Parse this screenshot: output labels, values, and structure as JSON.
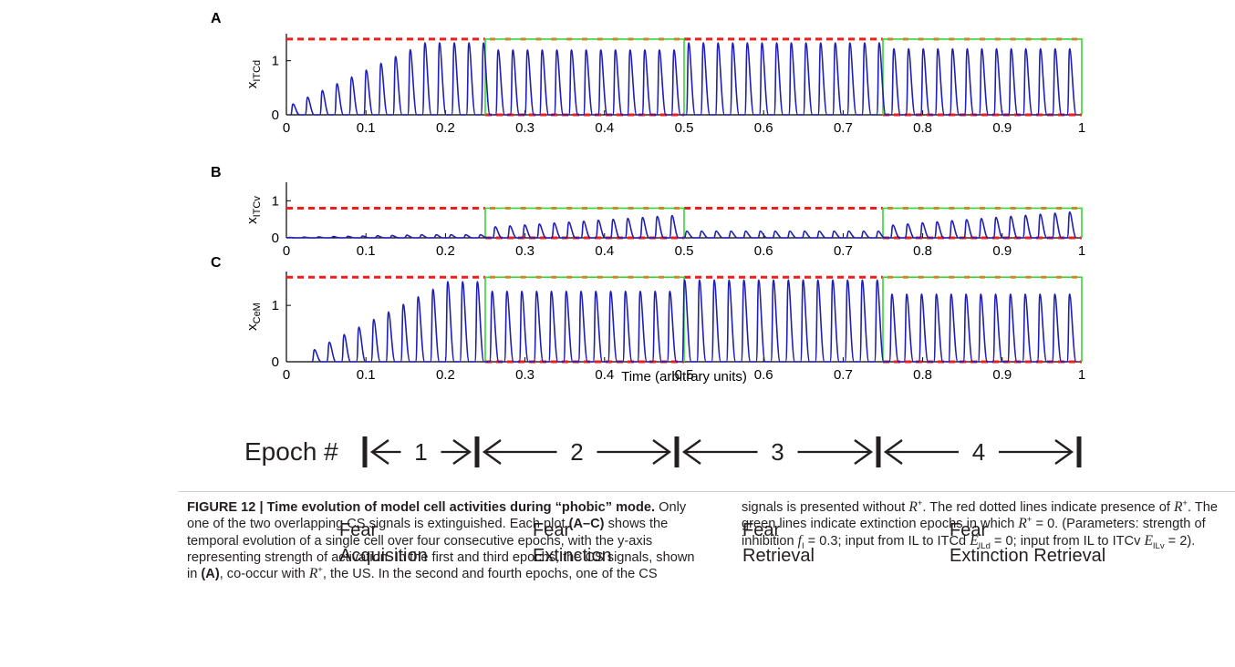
{
  "figure": {
    "panels": [
      {
        "label": "A",
        "ylabel_base": "x",
        "ylabel_sub": "ITCd",
        "yticks": [
          "1",
          "0"
        ]
      },
      {
        "label": "B",
        "ylabel_base": "x",
        "ylabel_sub": "ITCv",
        "yticks": [
          "1",
          "0"
        ]
      },
      {
        "label": "C",
        "ylabel_base": "x",
        "ylabel_sub": "CeM",
        "yticks": [
          "1",
          "0"
        ]
      }
    ],
    "xticks": [
      "0",
      "0.1",
      "0.2",
      "0.3",
      "0.4",
      "0.5",
      "0.6",
      "0.7",
      "0.8",
      "0.9",
      "1"
    ],
    "xlabel": "Time (arbitrary units)",
    "colors": {
      "activity": "#1f1fb4",
      "r_plus": "#e8201f",
      "extinction": "#39d639",
      "axis": "#000000"
    }
  },
  "chart_data": [
    {
      "type": "line",
      "panel": "A",
      "xlabel": "",
      "ylabel": "x ITCd",
      "xlim": [
        0,
        1
      ],
      "ylim": [
        0,
        1.5
      ],
      "series": [
        {
          "name": "",
          "kind": "spikes",
          "x_start": 0.005,
          "x_end": 1.0,
          "spikes": 54,
          "peaks_by_epoch": [
            1.33,
            1.2,
            1.33,
            1.22
          ]
        },
        {
          "name": "",
          "kind": "r_plus",
          "level_present": 1.4,
          "present_in_epochs": [
            1,
            3
          ]
        },
        {
          "name": "",
          "kind": "extinction",
          "level": 1.4,
          "epochs": [
            2,
            4
          ]
        }
      ]
    },
    {
      "type": "line",
      "panel": "B",
      "xlabel": "",
      "ylabel": "x ITCv",
      "xlim": [
        0,
        1
      ],
      "ylim": [
        0,
        1.5
      ],
      "series": [
        {
          "name": "",
          "kind": "spikes",
          "x_start": 0.0,
          "x_end": 1.0,
          "spikes": 54,
          "peaks_by_epoch": [
            0.08,
            0.62,
            0.18,
            0.72
          ]
        },
        {
          "name": "",
          "kind": "r_plus",
          "level_present": 0.8,
          "present_in_epochs": [
            1,
            3
          ]
        },
        {
          "name": "",
          "kind": "extinction",
          "level": 0.8,
          "epochs": [
            2,
            4
          ]
        }
      ]
    },
    {
      "type": "line",
      "panel": "C",
      "xlabel": "Time (arbitrary units)",
      "ylabel": "x CeM",
      "xlim": [
        0,
        1
      ],
      "ylim": [
        0,
        1.6
      ],
      "series": [
        {
          "name": "",
          "kind": "spikes",
          "x_start": 0.032,
          "x_end": 1.0,
          "spikes": 52,
          "peaks_by_epoch": [
            1.42,
            1.25,
            1.45,
            1.2
          ]
        },
        {
          "name": "",
          "kind": "r_plus",
          "level_present": 1.5,
          "present_in_epochs": [
            1,
            3
          ]
        },
        {
          "name": "",
          "kind": "extinction",
          "level": 1.5,
          "epochs": [
            2,
            4
          ]
        }
      ]
    }
  ],
  "epochs": {
    "title": "Epoch #",
    "items": [
      {
        "number": "1",
        "line1": "Fear",
        "line2": "Acquisition"
      },
      {
        "number": "2",
        "line1": "Fear",
        "line2": "Extinction"
      },
      {
        "number": "3",
        "line1": "Fear",
        "line2": "Retrieval"
      },
      {
        "number": "4",
        "line1": "Fear",
        "line2": "Extinction Retrieval"
      }
    ]
  },
  "caption": {
    "figure_label": "FIGURE 12 | Time evolution of model cell activities during “phobic” mode.",
    "s1": " Only one of the two overlapping CS signals is extinguished. Each plot ",
    "s1_bold": "(A–C)",
    "s2": " shows the temporal evolution of a single cell over four consecutive epochs, with the y-axis representing strength of activation. In the first and third epochs, the CS signals, shown in ",
    "s2_bold": "(A)",
    "s3": ", co-occur with ",
    "s4": ", the US. In the second and fourth epochs, one of the CS signals is presented without ",
    "s5": ". The red dotted lines indicate presence of ",
    "s6": ". The green lines indicate extinction epochs in which ",
    "s7": " = 0. (Parameters: strength of inhibition ",
    "f_sub": "I",
    "s8": " = 0.3; input from IL to ITCd ",
    "e1_sub": "ILd",
    "s9": " = 0; input from IL to ITCv ",
    "e2_sub": "ILv",
    "s10": " = 2).",
    "R": "R",
    "plus": "+",
    "f": "f",
    "E": "E"
  }
}
